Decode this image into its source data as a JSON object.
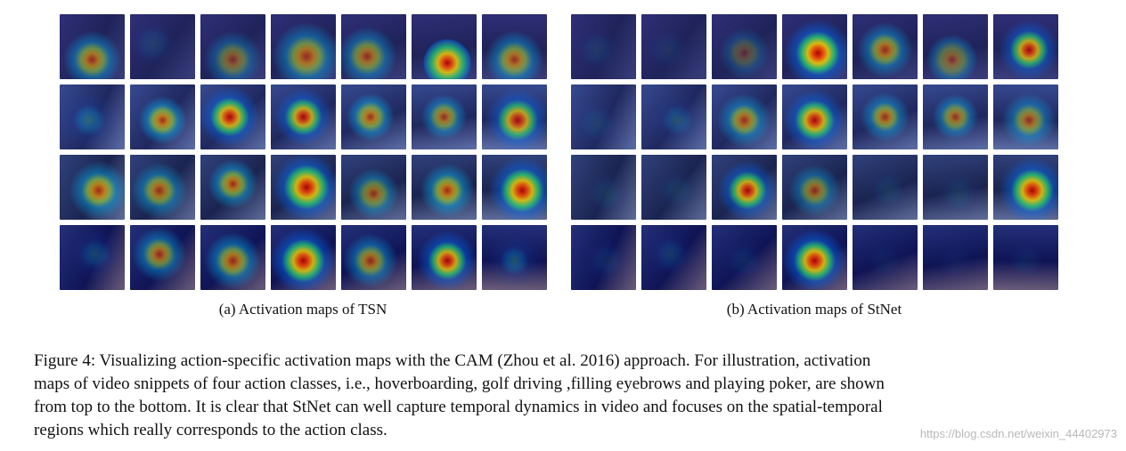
{
  "figure": {
    "panel_a_caption": "(a)  Activation maps of TSN",
    "panel_b_caption": "(b)  Activation maps of StNet",
    "caption_lines": [
      "Figure 4: Visualizing action-specific activation maps with the CAM (Zhou et al. 2016) approach. For illustration, activation",
      "maps of video snippets of four action classes, i.e., hoverboarding, golf driving ,filling eyebrows and playing poker, are shown",
      "from top to the bottom. It is clear that StNet can well capture temporal dynamics in video and focuses on the spatial-temporal",
      "regions which really corresponds to the action class."
    ]
  },
  "watermark": "https://blog.csdn.net/weixin_44402973"
}
